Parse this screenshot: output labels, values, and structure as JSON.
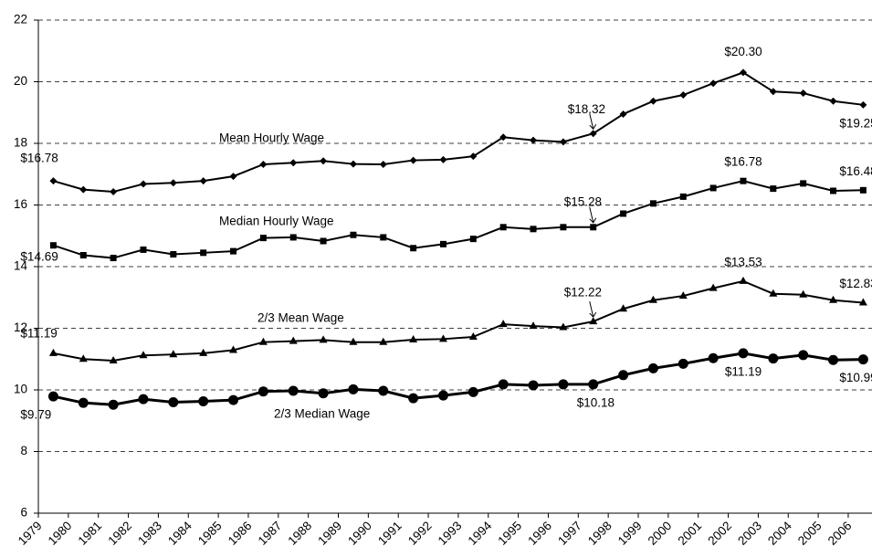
{
  "chart_data": {
    "type": "line",
    "categories": [
      "1979",
      "1980",
      "1981",
      "1982",
      "1983",
      "1984",
      "1985",
      "1986",
      "1987",
      "1988",
      "1989",
      "1990",
      "1991",
      "1992",
      "1993",
      "1994",
      "1995",
      "1996",
      "1997",
      "1998",
      "1999",
      "2000",
      "2001",
      "2002",
      "2003",
      "2004",
      "2005",
      "2006"
    ],
    "ylim": [
      6,
      22
    ],
    "yticks": [
      6,
      8,
      10,
      12,
      14,
      16,
      18,
      20,
      22
    ],
    "grid": true,
    "series": [
      {
        "name": "Mean Hourly Wage",
        "color": "#000000",
        "marker": "diamond",
        "values": [
          16.78,
          16.5,
          16.43,
          16.68,
          16.72,
          16.78,
          16.93,
          17.32,
          17.37,
          17.43,
          17.33,
          17.32,
          17.45,
          17.47,
          17.58,
          18.2,
          18.1,
          18.05,
          18.32,
          18.95,
          19.37,
          19.57,
          19.95,
          20.3,
          19.68,
          19.63,
          19.37,
          19.25
        ],
        "value_labels": [
          "$16.78",
          null,
          null,
          null,
          null,
          null,
          null,
          null,
          null,
          null,
          null,
          null,
          null,
          null,
          null,
          null,
          null,
          null,
          "$18.32",
          null,
          null,
          null,
          null,
          "$20.30",
          null,
          null,
          null,
          "$19.25"
        ]
      },
      {
        "name": "Median Hourly Wage",
        "color": "#000000",
        "marker": "square",
        "values": [
          14.69,
          14.37,
          14.28,
          14.55,
          14.4,
          14.45,
          14.5,
          14.93,
          14.95,
          14.83,
          15.03,
          14.95,
          14.6,
          14.73,
          14.9,
          15.28,
          15.22,
          15.28,
          15.28,
          15.72,
          16.05,
          16.27,
          16.55,
          16.78,
          16.53,
          16.7,
          16.46,
          16.48
        ],
        "value_labels": [
          "$14.69",
          null,
          null,
          null,
          null,
          null,
          null,
          null,
          null,
          null,
          null,
          null,
          null,
          null,
          null,
          null,
          null,
          null,
          "$15.28",
          null,
          null,
          null,
          null,
          "$16.78",
          null,
          null,
          null,
          "$16.48"
        ]
      },
      {
        "name": "2/3 Mean Wage",
        "color": "#000000",
        "marker": "triangle",
        "values": [
          11.19,
          11.0,
          10.95,
          11.12,
          11.15,
          11.19,
          11.29,
          11.55,
          11.58,
          11.62,
          11.55,
          11.55,
          11.63,
          11.65,
          11.72,
          12.13,
          12.07,
          12.03,
          12.22,
          12.63,
          12.91,
          13.05,
          13.3,
          13.53,
          13.12,
          13.09,
          12.91,
          12.83
        ],
        "value_labels": [
          "$11.19",
          null,
          null,
          null,
          null,
          null,
          null,
          null,
          null,
          null,
          null,
          null,
          null,
          null,
          null,
          null,
          null,
          null,
          "$12.22",
          null,
          null,
          null,
          null,
          "$13.53",
          null,
          null,
          null,
          "$12.83"
        ]
      },
      {
        "name": "2/3 Median Wage",
        "color": "#000000",
        "marker": "circle",
        "values": [
          9.79,
          9.58,
          9.52,
          9.7,
          9.6,
          9.63,
          9.67,
          9.95,
          9.97,
          9.89,
          10.02,
          9.97,
          9.73,
          9.82,
          9.93,
          10.18,
          10.15,
          10.18,
          10.18,
          10.48,
          10.7,
          10.85,
          11.03,
          11.19,
          11.02,
          11.13,
          10.97,
          10.99
        ],
        "value_labels": [
          "$9.79",
          null,
          null,
          null,
          null,
          null,
          null,
          null,
          null,
          null,
          null,
          null,
          null,
          null,
          null,
          null,
          null,
          null,
          "$10.18",
          null,
          null,
          null,
          null,
          "$11.19",
          null,
          null,
          null,
          "$10.99"
        ]
      }
    ]
  }
}
